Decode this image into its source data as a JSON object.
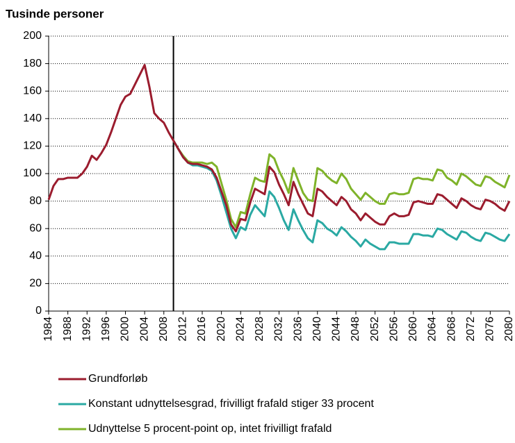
{
  "chart_data": {
    "type": "line",
    "title": "Tusinde personer",
    "x": [
      1984,
      1985,
      1986,
      1987,
      1988,
      1989,
      1990,
      1991,
      1992,
      1993,
      1994,
      1995,
      1996,
      1997,
      1998,
      1999,
      2000,
      2001,
      2002,
      2003,
      2004,
      2005,
      2006,
      2007,
      2008,
      2009,
      2010,
      2011,
      2012,
      2013,
      2014,
      2015,
      2016,
      2017,
      2018,
      2019,
      2020,
      2021,
      2022,
      2023,
      2024,
      2025,
      2026,
      2027,
      2028,
      2029,
      2030,
      2031,
      2032,
      2033,
      2034,
      2035,
      2036,
      2037,
      2038,
      2039,
      2040,
      2041,
      2042,
      2043,
      2044,
      2045,
      2046,
      2047,
      2048,
      2049,
      2050,
      2051,
      2052,
      2053,
      2054,
      2055,
      2056,
      2057,
      2058,
      2059,
      2060,
      2061,
      2062,
      2063,
      2064,
      2065,
      2066,
      2067,
      2068,
      2069,
      2070,
      2071,
      2072,
      2073,
      2074,
      2075,
      2076,
      2077,
      2078,
      2079,
      2080
    ],
    "series": [
      {
        "name": "Grundforløb",
        "color": "#9b1c2e",
        "values": [
          81,
          91,
          96,
          96,
          97,
          97,
          97,
          100,
          105,
          113,
          110,
          115,
          121,
          130,
          140,
          150,
          156,
          158,
          165,
          172,
          179,
          163,
          144,
          140,
          137,
          130,
          124,
          118,
          112,
          108,
          107,
          107,
          106,
          105,
          103,
          97,
          87,
          77,
          63,
          58,
          67,
          66,
          79,
          89,
          87,
          85,
          105,
          101,
          92,
          85,
          77,
          94,
          85,
          78,
          71,
          69,
          89,
          87,
          83,
          80,
          77,
          83,
          80,
          74,
          71,
          66,
          71,
          68,
          65,
          63,
          63,
          69,
          71,
          69,
          69,
          70,
          79,
          80,
          79,
          78,
          78,
          85,
          84,
          81,
          78,
          75,
          82,
          80,
          77,
          75,
          74,
          81,
          80,
          78,
          75,
          73,
          80
        ]
      },
      {
        "name": "Konstant udnyttelsesgrad, frivilligt frafald stiger 33 procent",
        "color": "#2aa9a3",
        "values": [
          null,
          null,
          null,
          null,
          null,
          null,
          null,
          null,
          null,
          null,
          null,
          null,
          null,
          null,
          null,
          null,
          null,
          null,
          null,
          null,
          null,
          null,
          null,
          null,
          null,
          null,
          124,
          118,
          112,
          108,
          106,
          106,
          105,
          104,
          102,
          95,
          84,
          72,
          60,
          53,
          61,
          59,
          70,
          77,
          73,
          69,
          87,
          83,
          75,
          66,
          59,
          74,
          66,
          59,
          53,
          50,
          66,
          64,
          60,
          58,
          55,
          61,
          58,
          54,
          51,
          47,
          52,
          49,
          47,
          45,
          45,
          50,
          50,
          49,
          49,
          49,
          56,
          56,
          55,
          55,
          54,
          60,
          59,
          56,
          54,
          52,
          58,
          57,
          54,
          52,
          51,
          57,
          56,
          54,
          52,
          51,
          56
        ]
      },
      {
        "name": "Udnyttelse 5 procent-point op, intet frivilligt frafald",
        "color": "#7fb32a",
        "values": [
          null,
          null,
          null,
          null,
          null,
          null,
          null,
          null,
          null,
          null,
          null,
          null,
          null,
          null,
          null,
          null,
          null,
          null,
          null,
          null,
          null,
          null,
          null,
          null,
          null,
          null,
          124,
          118,
          113,
          109,
          108,
          108,
          108,
          107,
          108,
          105,
          93,
          81,
          67,
          61,
          72,
          71,
          85,
          97,
          95,
          94,
          114,
          111,
          102,
          95,
          86,
          104,
          95,
          86,
          81,
          80,
          104,
          102,
          98,
          95,
          93,
          100,
          96,
          89,
          85,
          81,
          86,
          83,
          80,
          78,
          78,
          85,
          86,
          85,
          85,
          86,
          96,
          97,
          96,
          96,
          95,
          103,
          102,
          97,
          95,
          92,
          100,
          98,
          95,
          92,
          91,
          98,
          97,
          94,
          92,
          90,
          99
        ]
      }
    ],
    "xlim": [
      1984,
      2080
    ],
    "xticks": [
      1984,
      1988,
      1992,
      1996,
      2000,
      2004,
      2008,
      2012,
      2016,
      2020,
      2024,
      2028,
      2032,
      2036,
      2040,
      2044,
      2048,
      2052,
      2056,
      2060,
      2064,
      2068,
      2072,
      2076,
      2080
    ],
    "ylim": [
      0,
      200
    ],
    "yticks": [
      0,
      20,
      40,
      60,
      80,
      100,
      120,
      140,
      160,
      180,
      200
    ],
    "grid": true,
    "vline": 2010,
    "legend": "bottom"
  }
}
